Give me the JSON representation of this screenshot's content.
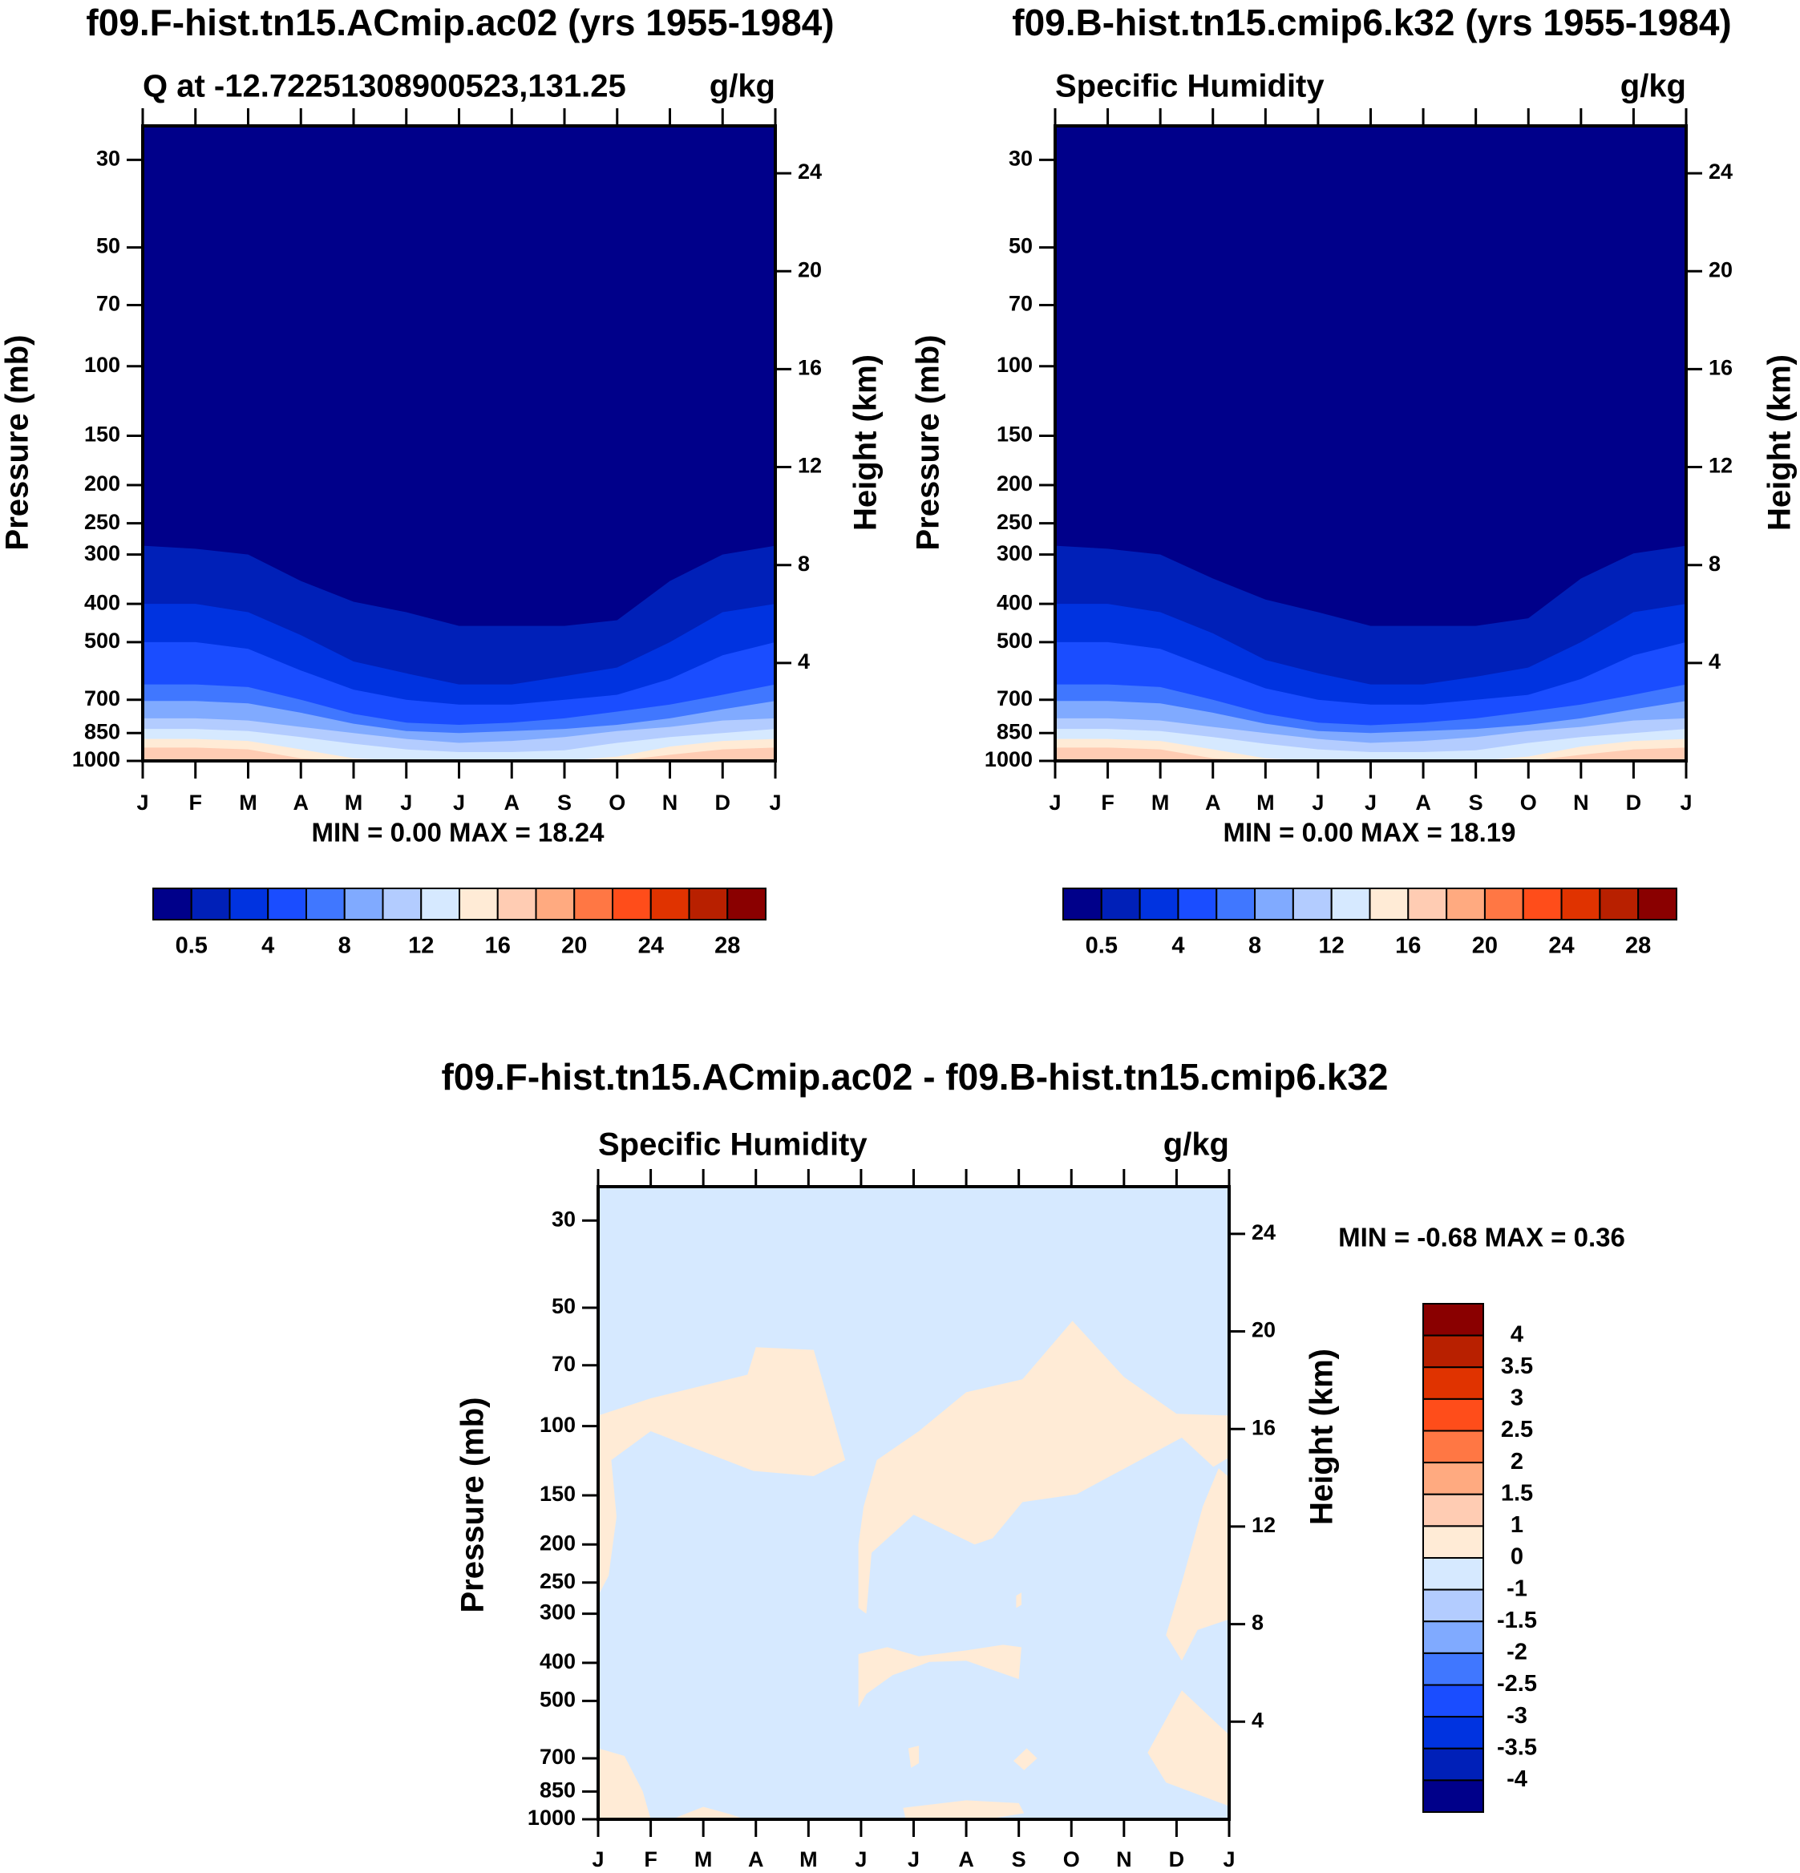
{
  "palette": [
    "#00008a",
    "#0020b8",
    "#0033e0",
    "#1a4dff",
    "#4077ff",
    "#80aaff",
    "#b3ccff",
    "#d6e9ff",
    "#ffebd6",
    "#ffccb3",
    "#ffaa80",
    "#ff7744",
    "#ff4d1a",
    "#e03300",
    "#b82000",
    "#8a0000"
  ],
  "chart_data": [
    {
      "type": "heatmap",
      "subtype": "pressure-month contour",
      "title": "f09.F-hist.tn15.ACmip.ac02 (yrs 1955-1984)",
      "subtitle_left": "Q at -12.72251308900523,131.25",
      "subtitle_right": "g/kg",
      "ylabel": "Pressure (mb)",
      "ylabel_right": "Height (km)",
      "x_ticks": [
        "J",
        "F",
        "M",
        "A",
        "M",
        "J",
        "J",
        "A",
        "S",
        "O",
        "N",
        "D",
        "J"
      ],
      "y_ticks": [
        30,
        50,
        70,
        100,
        150,
        200,
        250,
        300,
        400,
        500,
        700,
        850,
        1000
      ],
      "y_right_ticks": [
        24,
        20,
        16,
        12,
        8,
        4
      ],
      "stats": "MIN =   0.00 MAX =  18.24",
      "min": 0.0,
      "max": 18.24,
      "contour_levels": [
        0.5,
        2,
        4,
        6,
        8,
        10,
        12,
        14,
        16,
        18,
        20,
        22,
        24,
        26,
        28
      ],
      "colorbar_labels": [
        "0.5",
        "4",
        "8",
        "12",
        "16",
        "20",
        "24",
        "28"
      ],
      "base_color_index": 0,
      "contours": [
        {
          "level": 0.5,
          "p": [
            285,
            290,
            300,
            350,
            395,
            420,
            455,
            455,
            455,
            440,
            350,
            300,
            285
          ]
        },
        {
          "level": 2,
          "p": [
            400,
            400,
            420,
            480,
            560,
            600,
            640,
            640,
            610,
            580,
            500,
            420,
            400
          ]
        },
        {
          "level": 4,
          "p": [
            500,
            500,
            520,
            590,
            660,
            700,
            720,
            720,
            700,
            680,
            620,
            540,
            500
          ]
        },
        {
          "level": 6,
          "p": [
            640,
            640,
            650,
            700,
            760,
            800,
            810,
            800,
            780,
            750,
            720,
            680,
            640
          ]
        },
        {
          "level": 8,
          "p": [
            705,
            705,
            715,
            755,
            805,
            840,
            850,
            840,
            830,
            810,
            780,
            740,
            705
          ]
        },
        {
          "level": 10,
          "p": [
            780,
            780,
            790,
            820,
            850,
            880,
            900,
            890,
            870,
            840,
            820,
            790,
            780
          ]
        },
        {
          "level": 12,
          "p": [
            830,
            830,
            840,
            870,
            905,
            935,
            950,
            950,
            940,
            900,
            870,
            850,
            830
          ]
        },
        {
          "level": 14,
          "p": [
            880,
            880,
            890,
            935,
            985,
            1000,
            1000,
            1000,
            1000,
            975,
            920,
            890,
            880
          ]
        },
        {
          "level": 16,
          "p": [
            925,
            925,
            935,
            985,
            1000,
            1000,
            1000,
            1000,
            1000,
            1000,
            965,
            935,
            925
          ]
        }
      ]
    },
    {
      "type": "heatmap",
      "subtype": "pressure-month contour",
      "title": "f09.B-hist.tn15.cmip6.k32 (yrs 1955-1984)",
      "subtitle_left": "Specific Humidity",
      "subtitle_right": "g/kg",
      "ylabel": "Pressure (mb)",
      "ylabel_right": "Height (km)",
      "x_ticks": [
        "J",
        "F",
        "M",
        "A",
        "M",
        "J",
        "J",
        "A",
        "S",
        "O",
        "N",
        "D",
        "J"
      ],
      "y_ticks": [
        30,
        50,
        70,
        100,
        150,
        200,
        250,
        300,
        400,
        500,
        700,
        850,
        1000
      ],
      "y_right_ticks": [
        24,
        20,
        16,
        12,
        8,
        4
      ],
      "stats": "MIN =   0.00 MAX =  18.19",
      "min": 0.0,
      "max": 18.19,
      "contour_levels": [
        0.5,
        2,
        4,
        6,
        8,
        10,
        12,
        14,
        16,
        18,
        20,
        22,
        24,
        26,
        28
      ],
      "colorbar_labels": [
        "0.5",
        "4",
        "8",
        "12",
        "16",
        "20",
        "24",
        "28"
      ],
      "base_color_index": 0,
      "contours": [
        {
          "level": 0.5,
          "p": [
            285,
            290,
            300,
            345,
            390,
            420,
            455,
            455,
            455,
            435,
            345,
            298,
            285
          ]
        },
        {
          "level": 2,
          "p": [
            400,
            400,
            420,
            475,
            555,
            600,
            640,
            640,
            612,
            580,
            500,
            420,
            400
          ]
        },
        {
          "level": 4,
          "p": [
            500,
            500,
            520,
            585,
            655,
            700,
            720,
            720,
            700,
            680,
            620,
            540,
            500
          ]
        },
        {
          "level": 6,
          "p": [
            640,
            640,
            650,
            700,
            760,
            800,
            812,
            800,
            780,
            750,
            720,
            680,
            640
          ]
        },
        {
          "level": 8,
          "p": [
            705,
            705,
            715,
            755,
            805,
            840,
            850,
            840,
            830,
            810,
            780,
            740,
            705
          ]
        },
        {
          "level": 10,
          "p": [
            780,
            780,
            790,
            820,
            850,
            880,
            900,
            890,
            870,
            840,
            820,
            790,
            780
          ]
        },
        {
          "level": 12,
          "p": [
            830,
            830,
            840,
            870,
            905,
            935,
            950,
            950,
            940,
            900,
            870,
            850,
            830
          ]
        },
        {
          "level": 14,
          "p": [
            880,
            880,
            890,
            935,
            985,
            1000,
            1000,
            1000,
            1000,
            975,
            920,
            890,
            880
          ]
        },
        {
          "level": 16,
          "p": [
            925,
            925,
            935,
            985,
            1000,
            1000,
            1000,
            1000,
            1000,
            1000,
            965,
            935,
            925
          ]
        }
      ]
    },
    {
      "type": "heatmap",
      "subtype": "pressure-month contour (difference)",
      "title": "f09.F-hist.tn15.ACmip.ac02 - f09.B-hist.tn15.cmip6.k32",
      "subtitle_left": "Specific Humidity",
      "subtitle_right": "g/kg",
      "ylabel": "Pressure (mb)",
      "ylabel_right": "Height (km)",
      "x_ticks": [
        "J",
        "F",
        "M",
        "A",
        "M",
        "J",
        "J",
        "A",
        "S",
        "O",
        "N",
        "D",
        "J"
      ],
      "y_ticks": [
        30,
        50,
        70,
        100,
        150,
        200,
        250,
        300,
        400,
        500,
        700,
        850,
        1000
      ],
      "y_right_ticks": [
        24,
        20,
        16,
        12,
        8,
        4
      ],
      "stats": "MIN =  -0.68 MAX =   0.36",
      "min": -0.68,
      "max": 0.36,
      "contour_levels": [
        -4,
        -3.5,
        -3,
        -2.5,
        -2,
        -1.5,
        -1,
        0,
        1,
        1.5,
        2,
        2.5,
        3,
        3.5,
        4
      ],
      "colorbar_labels": [
        "4",
        "3.5",
        "3",
        "2.5",
        "2",
        "1.5",
        "1",
        "0",
        "-1",
        "-1.5",
        "-2",
        "-2.5",
        "-3",
        "-3.5",
        "-4"
      ],
      "base_color_index": 7,
      "positive_regions_0_to_1": [
        [
          [
            0,
            94
          ],
          [
            1,
            85
          ],
          [
            2.84,
            74
          ],
          [
            3,
            63
          ],
          [
            4.1,
            64
          ],
          [
            4.7,
            122
          ],
          [
            4.1,
            134
          ],
          [
            2.95,
            130
          ],
          [
            1,
            103
          ],
          [
            0.25,
            122
          ],
          [
            0.35,
            170
          ],
          [
            0.2,
            240
          ],
          [
            0,
            270
          ]
        ],
        [
          [
            5.3,
            122
          ],
          [
            6.1,
            103
          ],
          [
            7,
            82
          ],
          [
            8.07,
            76
          ],
          [
            9.02,
            54
          ],
          [
            10,
            75
          ],
          [
            11,
            93
          ],
          [
            12,
            94
          ],
          [
            12,
            120
          ],
          [
            11.7,
            127
          ],
          [
            11.1,
            107
          ],
          [
            9.1,
            149
          ],
          [
            8.07,
            156
          ],
          [
            7.5,
            193
          ],
          [
            7.16,
            200
          ],
          [
            6,
            168
          ],
          [
            5.2,
            210
          ],
          [
            5.1,
            300
          ],
          [
            4.95,
            290
          ],
          [
            4.95,
            200
          ],
          [
            5.05,
            160
          ]
        ],
        [
          [
            11.8,
            128
          ],
          [
            11.5,
            160
          ],
          [
            11.1,
            250
          ],
          [
            10.8,
            340
          ],
          [
            11.1,
            395
          ],
          [
            11.4,
            330
          ],
          [
            12,
            310
          ],
          [
            12,
            135
          ]
        ],
        [
          [
            4.95,
            380
          ],
          [
            5.5,
            365
          ],
          [
            6.1,
            385
          ],
          [
            7,
            372
          ],
          [
            7.7,
            360
          ],
          [
            8.05,
            365
          ],
          [
            8.0,
            440
          ],
          [
            7,
            395
          ],
          [
            6.3,
            398
          ],
          [
            5.6,
            430
          ],
          [
            5.1,
            480
          ],
          [
            4.95,
            520
          ]
        ],
        [
          [
            12,
            610
          ],
          [
            11.1,
            470
          ],
          [
            10.45,
            677
          ],
          [
            10.8,
            806
          ],
          [
            12,
            926
          ]
        ],
        [
          [
            0,
            660
          ],
          [
            0.5,
            690
          ],
          [
            0.85,
            850
          ],
          [
            1,
            1000
          ],
          [
            0,
            1000
          ]
        ],
        [
          [
            1.4,
            1000
          ],
          [
            2,
            930
          ],
          [
            2.5,
            970
          ],
          [
            2.8,
            1000
          ]
        ],
        [
          [
            5.85,
            1000
          ],
          [
            5.8,
            935
          ],
          [
            7,
            895
          ],
          [
            8,
            910
          ],
          [
            8.1,
            965
          ],
          [
            7.5,
            995
          ]
        ],
        [
          [
            5.9,
            660
          ],
          [
            6.1,
            650
          ],
          [
            6.1,
            720
          ],
          [
            5.95,
            740
          ]
        ],
        [
          [
            7.9,
            710
          ],
          [
            8.15,
            660
          ],
          [
            8.35,
            700
          ],
          [
            8.1,
            750
          ]
        ],
        [
          [
            7.95,
            270
          ],
          [
            8.05,
            265
          ],
          [
            8.05,
            285
          ],
          [
            7.95,
            290
          ]
        ]
      ]
    }
  ]
}
